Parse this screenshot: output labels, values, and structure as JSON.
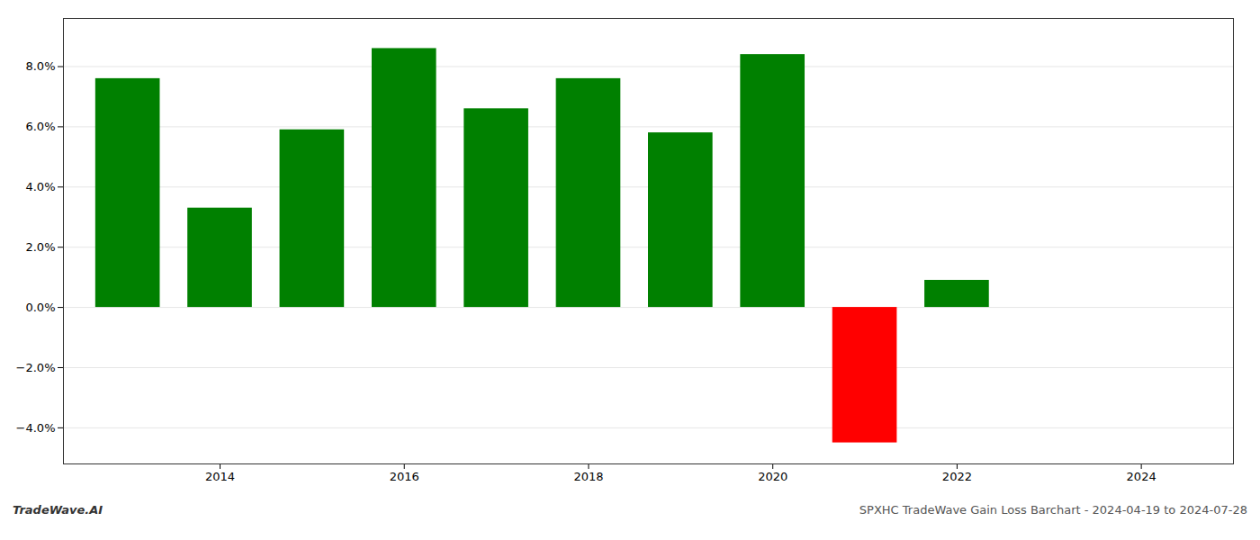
{
  "chart_data": {
    "type": "bar",
    "title": "SPXHC TradeWave Gain Loss Barchart - 2024-04-19 to 2024-07-28",
    "annotations": [
      "TradeWave.AI"
    ],
    "x": [
      2013,
      2014,
      2015,
      2016,
      2017,
      2018,
      2019,
      2020,
      2021,
      2022
    ],
    "values": [
      0.076,
      0.033,
      0.059,
      0.086,
      0.066,
      0.076,
      0.058,
      0.084,
      -0.045,
      0.009
    ],
    "colors": [
      "#008000",
      "#008000",
      "#008000",
      "#008000",
      "#008000",
      "#008000",
      "#008000",
      "#008000",
      "#ff0000",
      "#008000"
    ],
    "xlim": [
      2012.3,
      2025.0
    ],
    "ylim": [
      -0.052,
      0.096
    ],
    "xticks": [
      2014,
      2016,
      2018,
      2020,
      2022,
      2024
    ],
    "yticks": [
      {
        "value": -0.04,
        "label": "−4.0%"
      },
      {
        "value": -0.02,
        "label": "−2.0%"
      },
      {
        "value": 0.0,
        "label": "0.0%"
      },
      {
        "value": 0.02,
        "label": "2.0%"
      },
      {
        "value": 0.04,
        "label": "4.0%"
      },
      {
        "value": 0.06,
        "label": "6.0%"
      },
      {
        "value": 0.08,
        "label": "8.0%"
      }
    ],
    "grid": true
  }
}
